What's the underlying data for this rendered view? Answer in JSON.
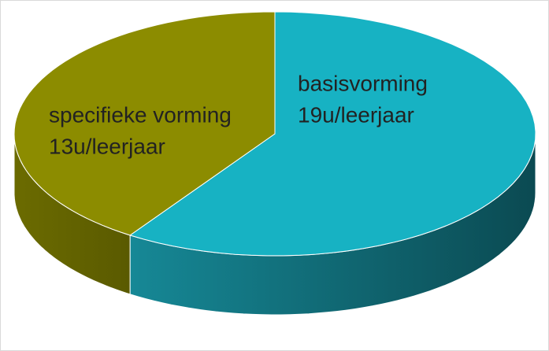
{
  "chart_data": {
    "type": "pie",
    "categories": [
      "basisvorming",
      "specifieke vorming"
    ],
    "values": [
      19,
      13
    ],
    "value_labels": [
      "19u/leerjaar",
      "13u/leerjaar"
    ],
    "colors": [
      "#17b2c3",
      "#8c8c00"
    ]
  }
}
